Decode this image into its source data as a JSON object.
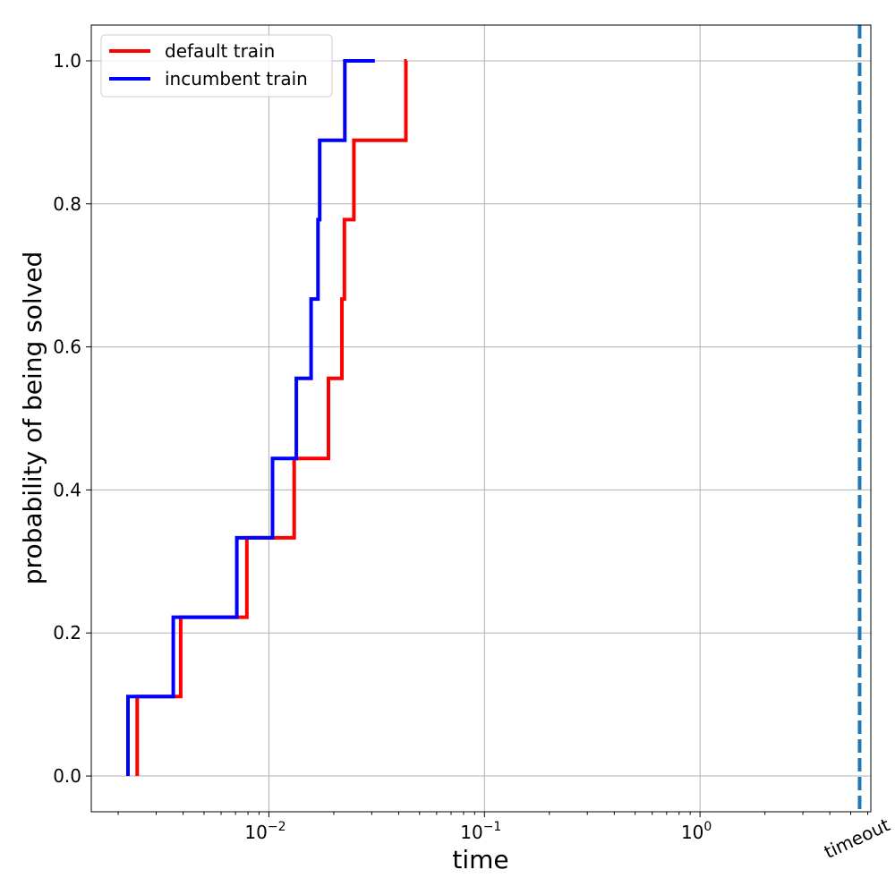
{
  "chart_data": {
    "type": "line",
    "xlabel": "time",
    "ylabel": "probability of being solved",
    "xscale": "log",
    "xlim": [
      0.0015,
      6.2
    ],
    "ylim": [
      -0.05,
      1.05
    ],
    "grid": true,
    "legend_position": "top-left",
    "x_ticks": [
      {
        "value": 0.01,
        "base": "10",
        "exp": "−2"
      },
      {
        "value": 0.1,
        "base": "10",
        "exp": "−1"
      },
      {
        "value": 1,
        "base": "10",
        "exp": "0"
      }
    ],
    "y_ticks": [
      {
        "value": 0.0,
        "label": "0.0"
      },
      {
        "value": 0.2,
        "label": "0.2"
      },
      {
        "value": 0.4,
        "label": "0.4"
      },
      {
        "value": 0.6,
        "label": "0.6"
      },
      {
        "value": 0.8,
        "label": "0.8"
      },
      {
        "value": 1.0,
        "label": "1.0"
      }
    ],
    "series": [
      {
        "name": "default train",
        "color": "#ff0000",
        "style": "step",
        "x": [
          0.00245,
          0.0039,
          0.0079,
          0.0131,
          0.0189,
          0.0218,
          0.0224,
          0.0248,
          0.0432
        ],
        "y": [
          0.111,
          0.222,
          0.333,
          0.444,
          0.556,
          0.667,
          0.778,
          0.889,
          1.0
        ],
        "start_y": 0.0,
        "end_x": 0.0436
      },
      {
        "name": "incumbent train",
        "color": "#0000ff",
        "style": "step",
        "x": [
          0.00222,
          0.0036,
          0.0071,
          0.0104,
          0.0134,
          0.0157,
          0.0169,
          0.0172,
          0.0225
        ],
        "y": [
          0.111,
          0.222,
          0.333,
          0.444,
          0.556,
          0.667,
          0.778,
          0.889,
          1.0
        ],
        "start_y": 0.0,
        "end_x": 0.031
      }
    ],
    "annotations": [
      {
        "type": "vline",
        "x": 5.5,
        "label": "timeout",
        "color": "#1f77b4",
        "style": "dashed"
      }
    ]
  }
}
